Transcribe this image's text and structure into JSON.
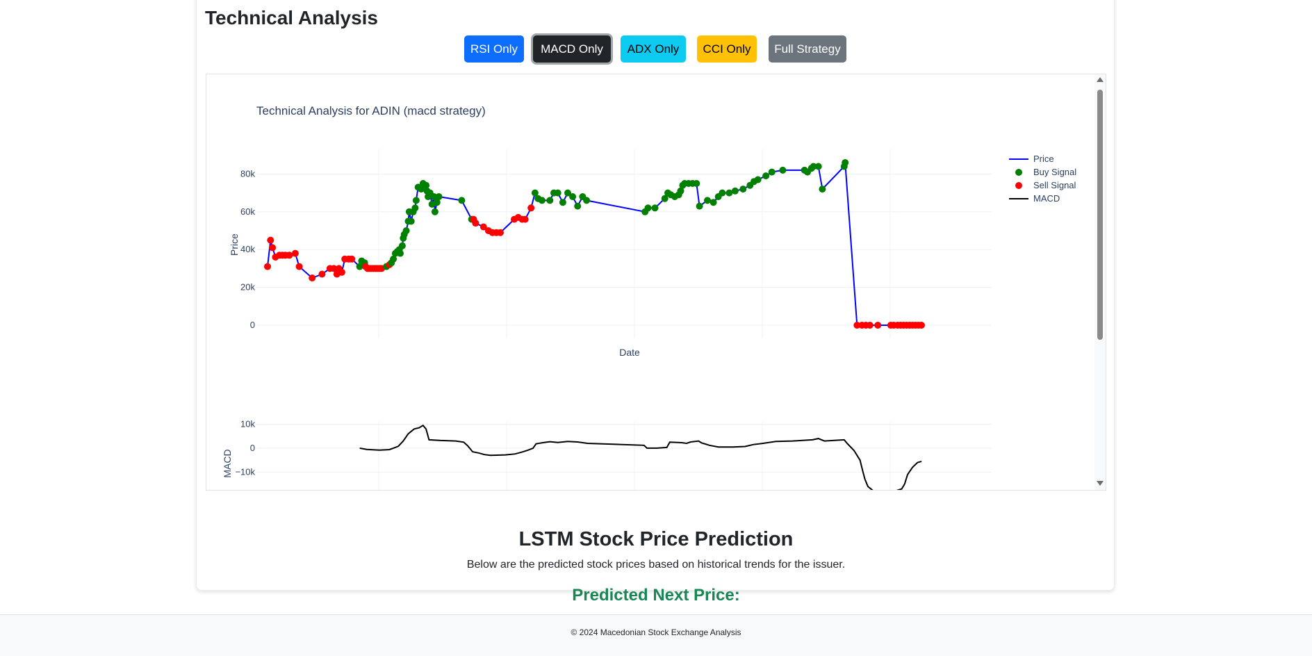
{
  "section": {
    "title": "Technical Analysis"
  },
  "buttons": [
    {
      "label": "RSI Only",
      "color": "#0d6efd"
    },
    {
      "label": "MACD Only",
      "color": "#212529",
      "active": true
    },
    {
      "label": "ADX Only",
      "color": "#0dcaf0"
    },
    {
      "label": "CCI Only",
      "color": "#ffc107"
    },
    {
      "label": "Full Strategy",
      "color": "#6c757d"
    }
  ],
  "chart_data": {
    "type": "line",
    "title": "Technical Analysis for ADIN (macd strategy)",
    "xlabel": "Date",
    "ylabel": "Price",
    "macd_ylabel": "MACD",
    "grid": true,
    "legend_position": "top-right",
    "legend": [
      {
        "name": "Price",
        "kind": "line",
        "color": "#0000ff"
      },
      {
        "name": "Buy Signal",
        "kind": "marker",
        "color": "#008000"
      },
      {
        "name": "Sell Signal",
        "kind": "marker",
        "color": "#ff0000"
      },
      {
        "name": "MACD",
        "kind": "line",
        "color": "#000000"
      }
    ],
    "price_ylim": [
      -7000,
      93000
    ],
    "price_yticks": [
      {
        "v": 0,
        "label": "0"
      },
      {
        "v": 20000,
        "label": "20k"
      },
      {
        "v": 40000,
        "label": "40k"
      },
      {
        "v": 60000,
        "label": "60k"
      },
      {
        "v": 80000,
        "label": "80k"
      }
    ],
    "macd_ylim": [
      -18000,
      11000
    ],
    "macd_yticks": [
      {
        "v": -10000,
        "label": "−10k"
      },
      {
        "v": 0,
        "label": "0"
      },
      {
        "v": 10000,
        "label": "10k"
      }
    ],
    "price": [
      [
        0,
        31000,
        "s"
      ],
      [
        3,
        45000,
        "s"
      ],
      [
        5,
        41000,
        "s"
      ],
      [
        8,
        36000,
        "s"
      ],
      [
        12,
        37000,
        "s"
      ],
      [
        15,
        37000,
        "s"
      ],
      [
        18,
        37000,
        "s"
      ],
      [
        22,
        37000,
        "s"
      ],
      [
        28,
        38000,
        "s"
      ],
      [
        32,
        31000,
        "s"
      ],
      [
        45,
        25000,
        "s"
      ],
      [
        55,
        27000,
        "s"
      ],
      [
        63,
        30000,
        "s"
      ],
      [
        67,
        30000,
        "s"
      ],
      [
        70,
        27000,
        "s"
      ],
      [
        72,
        30000,
        "s"
      ],
      [
        75,
        28000,
        "s"
      ],
      [
        78,
        35000,
        "s"
      ],
      [
        82,
        35000,
        "s"
      ],
      [
        85,
        35000,
        "s"
      ],
      [
        93,
        31000,
        "b"
      ],
      [
        95,
        34000,
        "b"
      ],
      [
        98,
        33000,
        "b"
      ],
      [
        99,
        31000,
        "s"
      ],
      [
        101,
        30000,
        "s"
      ],
      [
        103,
        30000,
        "s"
      ],
      [
        105,
        30000,
        "s"
      ],
      [
        107,
        30000,
        "s"
      ],
      [
        109,
        30000,
        "s"
      ],
      [
        111,
        30000,
        "s"
      ],
      [
        113,
        30000,
        "s"
      ],
      [
        115,
        30000,
        "s"
      ],
      [
        120,
        31000,
        "b"
      ],
      [
        123,
        32000,
        "s"
      ],
      [
        125,
        33000,
        "b"
      ],
      [
        127,
        35000,
        "b"
      ],
      [
        129,
        38000,
        "b"
      ],
      [
        131,
        39000,
        "b"
      ],
      [
        133,
        40000,
        "b"
      ],
      [
        134,
        38000,
        "b"
      ],
      [
        136,
        42000,
        "b"
      ],
      [
        137,
        46000,
        "b"
      ],
      [
        138,
        48000,
        "b"
      ],
      [
        140,
        50000,
        "b"
      ],
      [
        142,
        55000,
        "b"
      ],
      [
        143,
        60000,
        "b"
      ],
      [
        145,
        55000,
        "b"
      ],
      [
        147,
        60000,
        "b"
      ],
      [
        149,
        62000,
        "b"
      ],
      [
        150,
        66000,
        "b"
      ],
      [
        152,
        73000,
        "b"
      ],
      [
        155,
        72000,
        "b"
      ],
      [
        157,
        75000,
        "b"
      ],
      [
        160,
        74000,
        "b"
      ],
      [
        161,
        71000,
        "b"
      ],
      [
        162,
        68000,
        "b"
      ],
      [
        164,
        70000,
        "b"
      ],
      [
        166,
        64000,
        "b"
      ],
      [
        168,
        68000,
        "b"
      ],
      [
        169,
        60000,
        "b"
      ],
      [
        171,
        65000,
        "b"
      ],
      [
        173,
        68000,
        "b"
      ],
      [
        196,
        66000,
        "b"
      ],
      [
        206,
        56000,
        "b"
      ],
      [
        208,
        56000,
        "s"
      ],
      [
        210,
        54000,
        "s"
      ],
      [
        218,
        52000,
        "s"
      ],
      [
        223,
        50000,
        "s"
      ],
      [
        227,
        49000,
        "s"
      ],
      [
        231,
        49000,
        "s"
      ],
      [
        235,
        49000,
        "s"
      ],
      [
        249,
        56000,
        "s"
      ],
      [
        253,
        57000,
        "s"
      ],
      [
        257,
        56000,
        "s"
      ],
      [
        260,
        56000,
        "s"
      ],
      [
        266,
        62000,
        "s"
      ],
      [
        270,
        70000,
        "b"
      ],
      [
        273,
        67000,
        "b"
      ],
      [
        277,
        66000,
        "b"
      ],
      [
        285,
        66000,
        "b"
      ],
      [
        289,
        70000,
        "b"
      ],
      [
        293,
        70000,
        "b"
      ],
      [
        298,
        65000,
        "b"
      ],
      [
        303,
        70000,
        "b"
      ],
      [
        308,
        68000,
        "b"
      ],
      [
        313,
        63000,
        "b"
      ],
      [
        318,
        68000,
        "b"
      ],
      [
        322,
        66000,
        "b"
      ],
      [
        381,
        60000,
        "b"
      ],
      [
        384,
        62000,
        "b"
      ],
      [
        391,
        62000,
        "b"
      ],
      [
        401,
        67000,
        "b"
      ],
      [
        404,
        70000,
        "b"
      ],
      [
        407,
        69000,
        "b"
      ],
      [
        411,
        68000,
        "b"
      ],
      [
        415,
        69000,
        "b"
      ],
      [
        417,
        71000,
        "b"
      ],
      [
        419,
        74000,
        "b"
      ],
      [
        421,
        75000,
        "b"
      ],
      [
        425,
        75000,
        "b"
      ],
      [
        429,
        75000,
        "b"
      ],
      [
        433,
        75000,
        "b"
      ],
      [
        436,
        63000,
        "b"
      ],
      [
        444,
        66000,
        "b"
      ],
      [
        450,
        65000,
        "b"
      ],
      [
        455,
        68000,
        "b"
      ],
      [
        459,
        70000,
        "b"
      ],
      [
        466,
        70000,
        "b"
      ],
      [
        472,
        71000,
        "b"
      ],
      [
        480,
        72000,
        "b"
      ],
      [
        487,
        74000,
        "b"
      ],
      [
        491,
        76000,
        "b"
      ],
      [
        495,
        77000,
        "b"
      ],
      [
        503,
        79000,
        "b"
      ],
      [
        509,
        81000,
        "b"
      ],
      [
        520,
        82000,
        "b"
      ],
      [
        542,
        82000,
        "b"
      ],
      [
        545,
        81000,
        "b"
      ],
      [
        549,
        83000,
        "b"
      ],
      [
        551,
        84000,
        "b"
      ],
      [
        556,
        84000,
        "b"
      ],
      [
        560,
        72000,
        "b"
      ],
      [
        582,
        84000,
        "b"
      ],
      [
        583,
        86000,
        "b"
      ],
      [
        595,
        0,
        "s"
      ],
      [
        600,
        0,
        "s"
      ],
      [
        604,
        0,
        "s"
      ],
      [
        608,
        0,
        "s"
      ],
      [
        616,
        0,
        "s"
      ],
      [
        629,
        0,
        "s"
      ],
      [
        632,
        0,
        "s"
      ],
      [
        636,
        0,
        "s"
      ],
      [
        639,
        0,
        "s"
      ],
      [
        642,
        0,
        "s"
      ],
      [
        645,
        0,
        "s"
      ],
      [
        648,
        0,
        "s"
      ],
      [
        651,
        0,
        "s"
      ],
      [
        654,
        0,
        "s"
      ],
      [
        657,
        0,
        "s"
      ],
      [
        660,
        0,
        "s"
      ]
    ],
    "macd": [
      [
        93,
        0
      ],
      [
        100,
        -500
      ],
      [
        113,
        -800
      ],
      [
        123,
        -600
      ],
      [
        127,
        0
      ],
      [
        132,
        800
      ],
      [
        137,
        3000
      ],
      [
        142,
        6000
      ],
      [
        148,
        8000
      ],
      [
        153,
        8500
      ],
      [
        157,
        9500
      ],
      [
        160,
        8000
      ],
      [
        163,
        3500
      ],
      [
        175,
        3200
      ],
      [
        190,
        3000
      ],
      [
        198,
        2500
      ],
      [
        202,
        1000
      ],
      [
        207,
        -1500
      ],
      [
        213,
        -2000
      ],
      [
        219,
        -2700
      ],
      [
        225,
        -3000
      ],
      [
        240,
        -2800
      ],
      [
        250,
        -2400
      ],
      [
        258,
        -1500
      ],
      [
        263,
        -800
      ],
      [
        268,
        0
      ],
      [
        271,
        1800
      ],
      [
        278,
        2300
      ],
      [
        285,
        2700
      ],
      [
        293,
        2400
      ],
      [
        303,
        2800
      ],
      [
        313,
        2600
      ],
      [
        323,
        2000
      ],
      [
        380,
        1200
      ],
      [
        383,
        0
      ],
      [
        393,
        0
      ],
      [
        403,
        300
      ],
      [
        406,
        2500
      ],
      [
        418,
        2300
      ],
      [
        423,
        2000
      ],
      [
        427,
        2600
      ],
      [
        435,
        3000
      ],
      [
        438,
        2200
      ],
      [
        446,
        1200
      ],
      [
        455,
        500
      ],
      [
        470,
        500
      ],
      [
        482,
        700
      ],
      [
        490,
        1500
      ],
      [
        500,
        2000
      ],
      [
        513,
        2800
      ],
      [
        530,
        3000
      ],
      [
        550,
        3500
      ],
      [
        556,
        4000
      ],
      [
        562,
        3000
      ],
      [
        582,
        3500
      ],
      [
        585,
        2000
      ],
      [
        592,
        -1000
      ],
      [
        598,
        -5000
      ],
      [
        601,
        -10000
      ],
      [
        603,
        -13000
      ],
      [
        606,
        -16000
      ],
      [
        612,
        -18000
      ],
      [
        625,
        -19000
      ],
      [
        640,
        -17000
      ],
      [
        643,
        -15000
      ],
      [
        646,
        -11000
      ],
      [
        651,
        -8000
      ],
      [
        656,
        -6000
      ],
      [
        660,
        -5500
      ]
    ]
  },
  "lstm": {
    "title": "LSTM Stock Price Prediction",
    "description": "Below are the predicted stock prices based on historical trends for the issuer.",
    "predicted_label": "Predicted Next Price:"
  },
  "footer": {
    "text": "© 2024 Macedonian Stock Exchange Analysis"
  }
}
